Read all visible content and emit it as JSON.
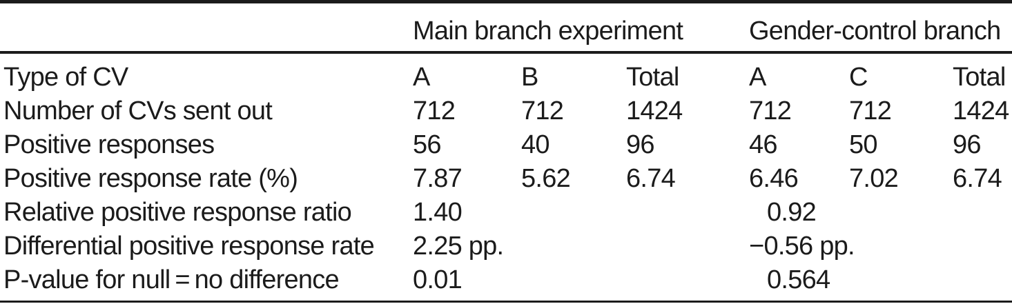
{
  "colors": {
    "text": "#1b1b1b",
    "background": "#ffffff",
    "rule": "#1b1b1b"
  },
  "table": {
    "group_headers": [
      {
        "label": "Main branch experiment"
      },
      {
        "label": "Gender-control branch"
      }
    ],
    "rows": [
      {
        "label": "Type of CV",
        "values": [
          "A",
          "B",
          "Total",
          "A",
          "C",
          "Total"
        ]
      },
      {
        "label": "Number of CVs sent out",
        "values": [
          "712",
          "712",
          "1424",
          "712",
          "712",
          "1424"
        ]
      },
      {
        "label": "Positive responses",
        "values": [
          "56",
          "40",
          "96",
          "46",
          "50",
          "96"
        ]
      },
      {
        "label": "Positive response rate (%)",
        "values": [
          "7.87",
          "5.62",
          "6.74",
          "6.46",
          "7.02",
          "6.74"
        ]
      },
      {
        "label": "Relative positive response ratio",
        "main": "1.40",
        "gender": "0.92"
      },
      {
        "label": "Differential positive response rate",
        "main": "2.25 pp.",
        "gender": "−0.56 pp."
      },
      {
        "label": "P-value for null = no difference",
        "main": "0.01",
        "gender": "0.564"
      }
    ]
  }
}
